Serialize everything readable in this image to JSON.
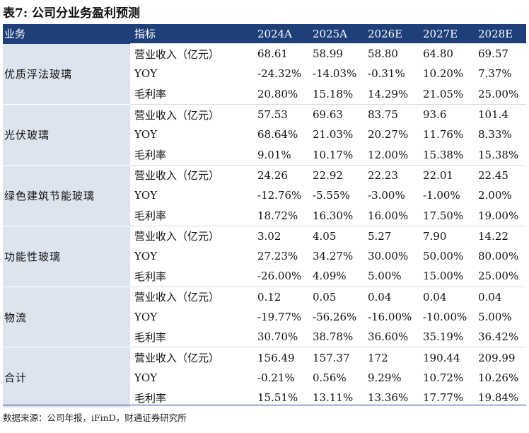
{
  "title": "表7: 公司分业务盈利预测",
  "headers": [
    "业务",
    "指标",
    "2024A",
    "2025A",
    "2026E",
    "2027E",
    "2028E"
  ],
  "groups": [
    {
      "name": "优质浮法玻璃",
      "rows": [
        {
          "metric": "营业收入（亿元）",
          "values": [
            "68.61",
            "58.99",
            "58.80",
            "64.80",
            "69.57"
          ]
        },
        {
          "metric": "YOY",
          "values": [
            "-24.32%",
            "-14.03%",
            "-0.31%",
            "10.20%",
            "7.37%"
          ]
        },
        {
          "metric": "毛利率",
          "values": [
            "20.80%",
            "15.18%",
            "14.29%",
            "21.05%",
            "25.00%"
          ]
        }
      ]
    },
    {
      "name": "光伏玻璃",
      "rows": [
        {
          "metric": "营业收入（亿元）",
          "values": [
            "57.53",
            "69.63",
            "83.75",
            "93.6",
            "101.4"
          ]
        },
        {
          "metric": "YOY",
          "values": [
            "68.64%",
            "21.03%",
            "20.27%",
            "11.76%",
            "8.33%"
          ]
        },
        {
          "metric": "毛利率",
          "values": [
            "9.01%",
            "10.17%",
            "12.00%",
            "15.38%",
            "15.38%"
          ]
        }
      ]
    },
    {
      "name": "绿色建筑节能玻璃",
      "rows": [
        {
          "metric": "营业收入（亿元）",
          "values": [
            "24.26",
            "22.92",
            "22.23",
            "22.01",
            "22.45"
          ]
        },
        {
          "metric": "YOY",
          "values": [
            "-12.76%",
            "-5.55%",
            "-3.00%",
            "-1.00%",
            "2.00%"
          ]
        },
        {
          "metric": "毛利率",
          "values": [
            "18.72%",
            "16.30%",
            "16.00%",
            "17.50%",
            "19.00%"
          ]
        }
      ]
    },
    {
      "name": "功能性玻璃",
      "rows": [
        {
          "metric": "营业收入（亿元）",
          "values": [
            "3.02",
            "4.05",
            "5.27",
            "7.90",
            "14.22"
          ]
        },
        {
          "metric": "YOY",
          "values": [
            "27.23%",
            "34.27%",
            "30.00%",
            "50.00%",
            "80.00%"
          ]
        },
        {
          "metric": "毛利率",
          "values": [
            "-26.00%",
            "4.09%",
            "5.00%",
            "15.00%",
            "25.00%"
          ]
        }
      ]
    },
    {
      "name": "物流",
      "rows": [
        {
          "metric": "营业收入（亿元）",
          "values": [
            "0.12",
            "0.05",
            "0.04",
            "0.04",
            "0.04"
          ]
        },
        {
          "metric": "YOY",
          "values": [
            "-19.77%",
            "-56.26%",
            "-16.00%",
            "-10.00%",
            "5.00%"
          ]
        },
        {
          "metric": "毛利率",
          "values": [
            "30.70%",
            "38.78%",
            "36.60%",
            "35.19%",
            "36.42%"
          ]
        }
      ]
    },
    {
      "name": "合计",
      "rows": [
        {
          "metric": "营业收入（亿元）",
          "values": [
            "156.49",
            "157.37",
            "172",
            "190.44",
            "209.99"
          ]
        },
        {
          "metric": "YOY",
          "values": [
            "-0.21%",
            "0.56%",
            "9.29%",
            "10.72%",
            "10.26%"
          ]
        },
        {
          "metric": "毛利率",
          "values": [
            "15.51%",
            "13.11%",
            "13.36%",
            "17.77%",
            "19.84%"
          ]
        }
      ]
    }
  ],
  "footer": "数据来源：公司年报，iFinD，财通证券研究所"
}
